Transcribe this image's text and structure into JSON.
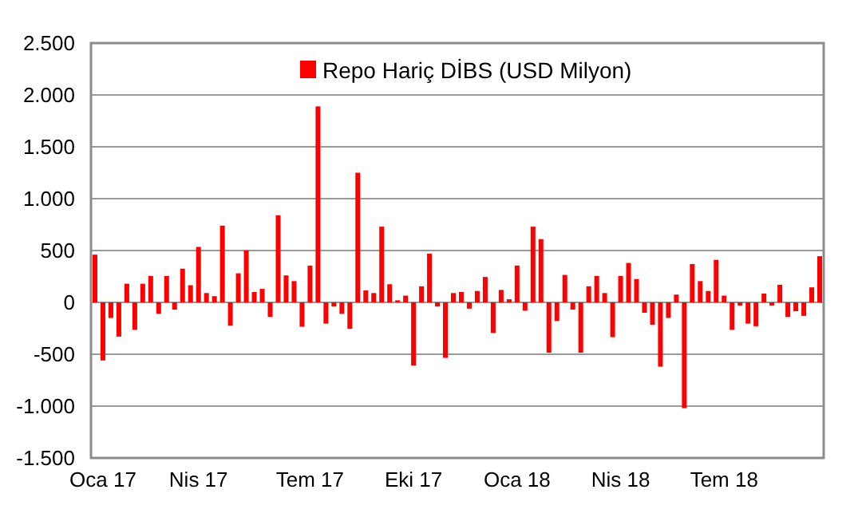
{
  "chart_data": {
    "type": "bar",
    "categories": [
      null,
      "Oca 17",
      null,
      null,
      null,
      null,
      null,
      null,
      null,
      null,
      null,
      null,
      null,
      "Nis 17",
      null,
      null,
      null,
      null,
      null,
      null,
      null,
      null,
      null,
      null,
      null,
      null,
      null,
      "Tem 17",
      null,
      null,
      null,
      null,
      null,
      null,
      null,
      null,
      null,
      null,
      null,
      null,
      "Eki 17",
      null,
      null,
      null,
      null,
      null,
      null,
      null,
      null,
      null,
      null,
      null,
      null,
      "Oca 18",
      null,
      null,
      null,
      null,
      null,
      null,
      null,
      null,
      null,
      null,
      null,
      null,
      "Nis 18",
      null,
      null,
      null,
      null,
      null,
      null,
      null,
      null,
      null,
      null,
      null,
      null,
      "Tem 18",
      null,
      null,
      null,
      null,
      null,
      null,
      null,
      null,
      null,
      null,
      null,
      null
    ],
    "series": [
      {
        "name": "Repo Hariç DİBS (USD Milyon)",
        "color": "#ff0000",
        "values": [
          460,
          -560,
          -150,
          -330,
          180,
          -265,
          180,
          255,
          -110,
          255,
          -70,
          325,
          165,
          535,
          90,
          60,
          740,
          -225,
          280,
          500,
          100,
          130,
          -140,
          840,
          260,
          205,
          -235,
          355,
          1890,
          -205,
          -40,
          -110,
          -255,
          1250,
          115,
          90,
          730,
          175,
          20,
          65,
          -610,
          155,
          470,
          -40,
          -535,
          90,
          100,
          -60,
          110,
          245,
          -295,
          120,
          30,
          355,
          -80,
          730,
          610,
          -485,
          -180,
          265,
          -70,
          -485,
          155,
          255,
          90,
          -335,
          255,
          380,
          225,
          -100,
          -215,
          -620,
          -150,
          75,
          -1020,
          370,
          205,
          110,
          410,
          65,
          -265,
          -30,
          -205,
          -230,
          85,
          -30,
          170,
          -140,
          -85,
          -130,
          145,
          445
        ]
      }
    ],
    "ylim": [
      -1500,
      2500
    ],
    "yticks": [
      {
        "value": -1500,
        "label": "-1.500"
      },
      {
        "value": -1000,
        "label": "-1.000"
      },
      {
        "value": -500,
        "label": "-500"
      },
      0,
      {
        "value": 500,
        "label": "500"
      },
      {
        "value": 1000,
        "label": "1.000"
      },
      {
        "value": 1500,
        "label": "1.500"
      },
      {
        "value": 2000,
        "label": "2.000"
      },
      {
        "value": 2500,
        "label": "2.500"
      }
    ],
    "grid": "y",
    "legend": "top"
  }
}
